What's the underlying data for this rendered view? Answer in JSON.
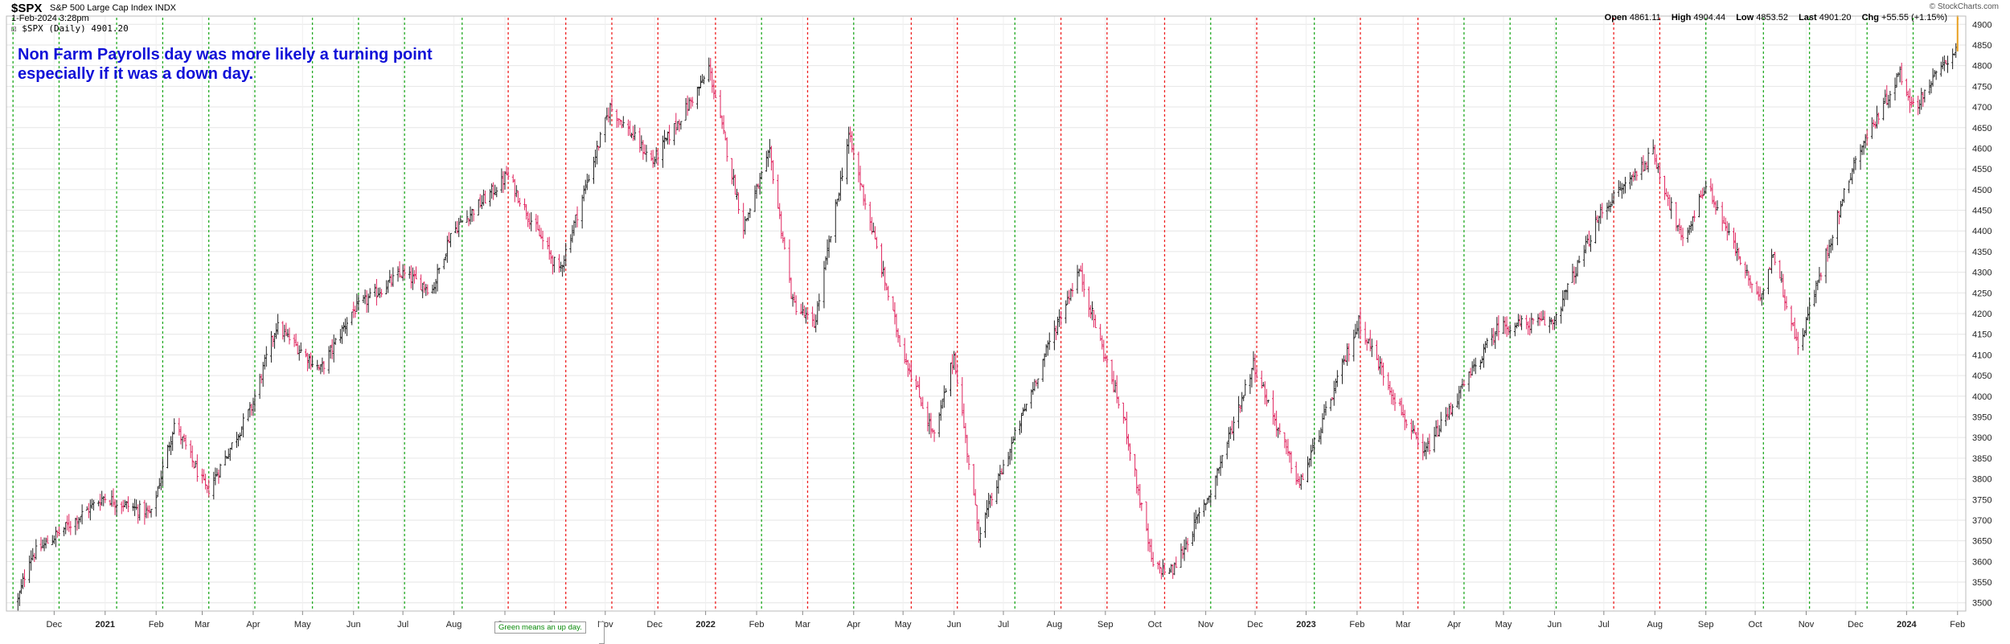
{
  "header": {
    "symbol": "$SPX",
    "name": "S&P 500 Large Cap Index",
    "exchange": "INDX",
    "date": "1-Feb-2024 3:28pm",
    "legend_line": "$SPX (Daily) 4901.20",
    "credit": "© StockCharts.com"
  },
  "ohlc": {
    "open_label": "Open",
    "open": "4861.11",
    "high_label": "High",
    "high": "4904.44",
    "low_label": "Low",
    "low": "4853.52",
    "last_label": "Last",
    "last": "4901.20",
    "chg_label": "Chg",
    "chg": "+55.55 (+1.15%)"
  },
  "annotation": {
    "line1": "Non Farm Payrolls day was more likely a turning point",
    "line2": "especially if it was a down day."
  },
  "legend_note": "Green means an up day.",
  "colors": {
    "up_bar": "#222222",
    "down_bar": "#e0245e",
    "last_bar": "#e8a020",
    "up_day_line": "#22aa22",
    "down_day_line": "#ee2222",
    "grid": "#e6e6e6",
    "note_text": "#1010d8"
  },
  "chart_data": {
    "type": "ohlc",
    "x_ticks": [
      "Dec",
      "2021",
      "Feb",
      "Mar",
      "Apr",
      "May",
      "Jun",
      "Jul",
      "Aug",
      "Sep",
      "Oct",
      "Nov",
      "Dec",
      "2022",
      "Feb",
      "Mar",
      "Apr",
      "May",
      "Jun",
      "Jul",
      "Aug",
      "Sep",
      "Oct",
      "Nov",
      "Dec",
      "2023",
      "Feb",
      "Mar",
      "Apr",
      "May",
      "Jun",
      "Jul",
      "Aug",
      "Sep",
      "Oct",
      "Nov",
      "Dec",
      "2024",
      "Feb"
    ],
    "y_ticks": [
      3500,
      3550,
      3600,
      3650,
      3700,
      3750,
      3800,
      3850,
      3900,
      3950,
      4000,
      4050,
      4100,
      4150,
      4200,
      4250,
      4300,
      4350,
      4400,
      4450,
      4500,
      4550,
      4600,
      4650,
      4700,
      4750,
      4800,
      4850,
      4900
    ],
    "ylim": [
      3480,
      4920
    ],
    "xlim": [
      "2020-11-02",
      "2024-02-06"
    ],
    "grid": true,
    "price_path": [
      [
        "2020-11-02",
        3400
      ],
      [
        "2020-11-16",
        3610
      ],
      [
        "2020-12-01",
        3660
      ],
      [
        "2020-12-31",
        3756
      ],
      [
        "2021-01-29",
        3714
      ],
      [
        "2021-02-12",
        3934
      ],
      [
        "2021-03-04",
        3768
      ],
      [
        "2021-03-31",
        3973
      ],
      [
        "2021-04-15",
        4170
      ],
      [
        "2021-05-12",
        4063
      ],
      [
        "2021-05-31",
        4204
      ],
      [
        "2021-06-30",
        4297
      ],
      [
        "2021-07-19",
        4258
      ],
      [
        "2021-07-30",
        4395
      ],
      [
        "2021-08-31",
        4522
      ],
      [
        "2021-09-02",
        4537
      ],
      [
        "2021-10-04",
        4300
      ],
      [
        "2021-11-04",
        4700
      ],
      [
        "2021-11-30",
        4567
      ],
      [
        "2021-12-31",
        4766
      ],
      [
        "2022-01-03",
        4796
      ],
      [
        "2022-01-24",
        4410
      ],
      [
        "2022-02-09",
        4587
      ],
      [
        "2022-02-23",
        4225
      ],
      [
        "2022-03-08",
        4170
      ],
      [
        "2022-03-29",
        4631
      ],
      [
        "2022-04-29",
        4132
      ],
      [
        "2022-05-20",
        3900
      ],
      [
        "2022-06-01",
        4100
      ],
      [
        "2022-06-16",
        3667
      ],
      [
        "2022-07-29",
        4130
      ],
      [
        "2022-08-16",
        4305
      ],
      [
        "2022-09-13",
        3932
      ],
      [
        "2022-09-30",
        3585
      ],
      [
        "2022-10-12",
        3577
      ],
      [
        "2022-11-04",
        3770
      ],
      [
        "2022-11-30",
        4080
      ],
      [
        "2022-12-28",
        3783
      ],
      [
        "2023-02-02",
        4180
      ],
      [
        "2023-03-13",
        3855
      ],
      [
        "2023-04-28",
        4169
      ],
      [
        "2023-05-31",
        4180
      ],
      [
        "2023-06-30",
        4450
      ],
      [
        "2023-07-31",
        4588
      ],
      [
        "2023-08-18",
        4370
      ],
      [
        "2023-09-01",
        4516
      ],
      [
        "2023-10-03",
        4229
      ],
      [
        "2023-10-12",
        4349
      ],
      [
        "2023-10-27",
        4117
      ],
      [
        "2023-11-30",
        4567
      ],
      [
        "2023-12-28",
        4783
      ],
      [
        "2024-01-05",
        4697
      ],
      [
        "2024-01-31",
        4845
      ],
      [
        "2024-02-01",
        4901
      ]
    ],
    "nfp_days": [
      {
        "date": "2020-11-06",
        "up": true
      },
      {
        "date": "2020-12-04",
        "up": true
      },
      {
        "date": "2021-01-08",
        "up": true
      },
      {
        "date": "2021-02-05",
        "up": true
      },
      {
        "date": "2021-03-05",
        "up": true
      },
      {
        "date": "2021-04-02",
        "up": true
      },
      {
        "date": "2021-05-07",
        "up": true
      },
      {
        "date": "2021-06-04",
        "up": true
      },
      {
        "date": "2021-07-02",
        "up": true
      },
      {
        "date": "2021-08-06",
        "up": true
      },
      {
        "date": "2021-09-03",
        "up": false
      },
      {
        "date": "2021-10-08",
        "up": false
      },
      {
        "date": "2021-11-05",
        "up": false
      },
      {
        "date": "2021-12-03",
        "up": false
      },
      {
        "date": "2022-01-07",
        "up": false
      },
      {
        "date": "2022-02-04",
        "up": true
      },
      {
        "date": "2022-03-04",
        "up": false
      },
      {
        "date": "2022-04-01",
        "up": true
      },
      {
        "date": "2022-05-06",
        "up": false
      },
      {
        "date": "2022-06-03",
        "up": false
      },
      {
        "date": "2022-07-08",
        "up": true
      },
      {
        "date": "2022-08-05",
        "up": false
      },
      {
        "date": "2022-09-02",
        "up": false
      },
      {
        "date": "2022-10-07",
        "up": false
      },
      {
        "date": "2022-11-04",
        "up": true
      },
      {
        "date": "2022-12-02",
        "up": false
      },
      {
        "date": "2023-01-06",
        "up": true
      },
      {
        "date": "2023-02-03",
        "up": false
      },
      {
        "date": "2023-03-10",
        "up": false
      },
      {
        "date": "2023-04-07",
        "up": true
      },
      {
        "date": "2023-05-05",
        "up": true
      },
      {
        "date": "2023-06-02",
        "up": true
      },
      {
        "date": "2023-07-07",
        "up": false
      },
      {
        "date": "2023-08-04",
        "up": false
      },
      {
        "date": "2023-09-01",
        "up": true
      },
      {
        "date": "2023-10-06",
        "up": true
      },
      {
        "date": "2023-11-03",
        "up": true
      },
      {
        "date": "2023-12-08",
        "up": true
      },
      {
        "date": "2024-01-05",
        "up": true
      }
    ]
  }
}
